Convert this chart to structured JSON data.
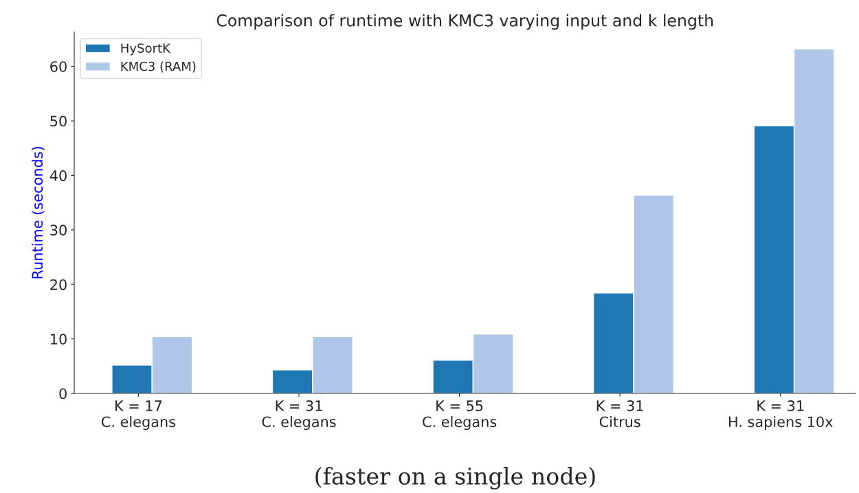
{
  "chart_data": {
    "type": "bar",
    "title": "Comparison of runtime with KMC3 varying input and k length",
    "ylabel": "Runtime (seconds)",
    "categories": [
      "K = 17\nC. elegans",
      "K = 31\nC. elegans",
      "K = 55\nC. elegans",
      "K = 31\nCitrus",
      "K = 31\nH. sapiens 10x"
    ],
    "series": [
      {
        "name": "HySortK",
        "color": "#1f77b4",
        "values": [
          5.2,
          4.3,
          6.1,
          18.4,
          49.1
        ]
      },
      {
        "name": "KMC3 (RAM)",
        "color": "#aec7e8",
        "values": [
          10.4,
          10.4,
          10.9,
          36.4,
          63.2
        ]
      }
    ],
    "ylim": [
      0,
      66.3
    ],
    "yticks": [
      0,
      10,
      20,
      30,
      40,
      50,
      60
    ],
    "grid": false,
    "legend": "top left",
    "annotations": [
      "(faster on a single node)"
    ]
  }
}
